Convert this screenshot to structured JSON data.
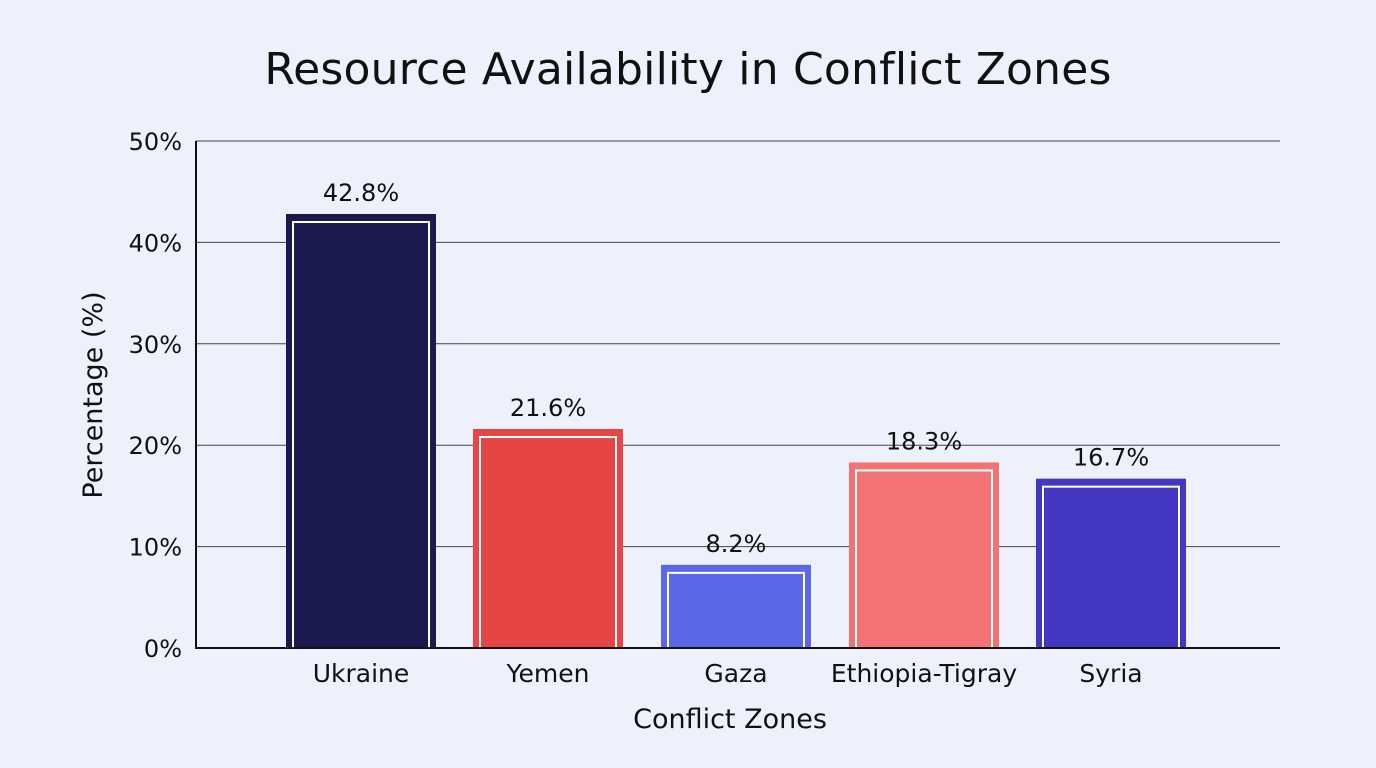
{
  "chart_data": {
    "type": "bar",
    "title": "Resource Availability in Conflict Zones",
    "xlabel": "Conflict Zones",
    "ylabel": "Percentage (%)",
    "categories": [
      "Ukraine",
      "Yemen",
      "Gaza",
      "Ethiopia-Tigray",
      "Syria"
    ],
    "values": [
      42.8,
      21.6,
      8.2,
      18.3,
      16.7
    ],
    "value_labels": [
      "42.8%",
      "21.6%",
      "8.2%",
      "18.3%",
      "16.7%"
    ],
    "colors": [
      "#1b1a4e",
      "#e64545",
      "#5c67e8",
      "#f27373",
      "#4237c2"
    ],
    "ylim": [
      0,
      50
    ],
    "yticks": [
      0,
      10,
      20,
      30,
      40,
      50
    ],
    "ytick_labels": [
      "0%",
      "10%",
      "20%",
      "30%",
      "40%",
      "50%"
    ],
    "grid": true,
    "legend": "none"
  }
}
